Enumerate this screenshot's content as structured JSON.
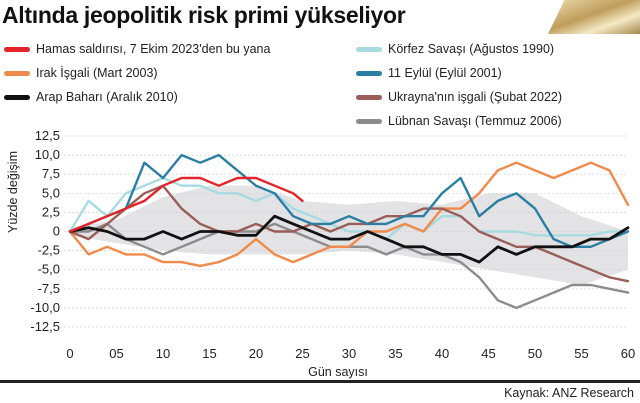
{
  "title": "Altında jeopolitik risk primi yükseliyor",
  "source": "Kaynak: ANZ Research",
  "legend": [
    {
      "label": "Hamas saldırısı, 7 Ekim 2023'den bu yana",
      "color": "#e3242b"
    },
    {
      "label": "Irak İşgali (Mart 2003)",
      "color": "#f08a4b"
    },
    {
      "label": "Arap Baharı (Aralık 2010)",
      "color": "#111111"
    },
    {
      "label": "Körfez Savaşı (Ağustos 1990)",
      "color": "#a6dbe2"
    },
    {
      "label": "11 Eylül (Eylül 2001)",
      "color": "#2b7ea3"
    },
    {
      "label": "Ukrayna'nın işgali (Şubat 2022)",
      "color": "#9a5d57"
    },
    {
      "label": "Lübnan Savaşı (Temmuz 2006)",
      "color": "#8c8c8c"
    }
  ],
  "chart_data": {
    "type": "line",
    "ylabel": "Yüzde değişim",
    "xlabel": "Gün sayısı",
    "xlim": [
      0,
      60
    ],
    "ylim": [
      -12.5,
      12.5
    ],
    "x_ticks": [
      "0",
      "05",
      "10",
      "15",
      "20",
      "25",
      "30",
      "35",
      "40",
      "45",
      "50",
      "55",
      "60"
    ],
    "y_ticks": [
      "12,5",
      "10,0",
      "7,5",
      "5,0",
      "2,5",
      "0",
      "-2,5",
      "-5,0",
      "-7,5",
      "-10,0",
      "-12,5"
    ],
    "band": {
      "x": [
        0,
        5,
        10,
        15,
        20,
        25,
        30,
        35,
        40,
        45,
        50,
        55,
        60
      ],
      "upper": [
        0.5,
        1.5,
        4.5,
        6.0,
        6.0,
        4.0,
        3.5,
        4.0,
        3.5,
        5.0,
        5.0,
        2.0,
        0
      ],
      "lower": [
        -0.5,
        -1.5,
        -2.5,
        -3.0,
        -3.0,
        -3.0,
        -2.5,
        -3.0,
        -4.0,
        -5.0,
        -6.0,
        -7.0,
        -5.0
      ]
    },
    "series": [
      {
        "name": "Körfez Savaşı (Ağustos 1990)",
        "color": "#a6dbe2",
        "x": [
          0,
          2,
          4,
          6,
          8,
          10,
          12,
          14,
          16,
          18,
          20,
          22,
          24,
          26,
          28,
          30,
          32,
          34,
          36,
          38,
          40,
          42,
          44,
          46,
          48,
          50,
          52,
          54,
          56,
          58,
          60
        ],
        "y": [
          0,
          4,
          2,
          5,
          6,
          7,
          6,
          6,
          5,
          5,
          4,
          5,
          3,
          2,
          1,
          0,
          0,
          -1,
          1,
          0,
          2,
          2,
          0,
          0,
          0,
          -0.5,
          -0.5,
          -0.5,
          -0.5,
          0,
          0
        ]
      },
      {
        "name": "Lübnan Savaşı (Temmuz 2006)",
        "color": "#8c8c8c",
        "x": [
          0,
          2,
          4,
          6,
          8,
          10,
          12,
          14,
          16,
          18,
          20,
          22,
          24,
          26,
          28,
          30,
          32,
          34,
          36,
          38,
          40,
          42,
          44,
          46,
          48,
          50,
          52,
          54,
          56,
          58,
          60
        ],
        "y": [
          0,
          0,
          1,
          -1,
          -2,
          -3,
          -2,
          -1,
          0,
          0,
          0,
          1,
          0,
          -1,
          -2,
          -2,
          -2,
          -3,
          -2,
          -3,
          -3,
          -4,
          -6,
          -9,
          -10,
          -9,
          -8,
          -7,
          -7,
          -7.5,
          -8
        ]
      },
      {
        "name": "Irak İşgali (Mart 2003)",
        "color": "#f08a4b",
        "x": [
          0,
          2,
          4,
          6,
          8,
          10,
          12,
          14,
          16,
          18,
          20,
          22,
          24,
          26,
          28,
          30,
          32,
          34,
          36,
          38,
          40,
          42,
          44,
          46,
          48,
          50,
          52,
          54,
          56,
          58,
          60
        ],
        "y": [
          0,
          -3,
          -2,
          -3,
          -3,
          -4,
          -4,
          -4.5,
          -4,
          -3,
          -1,
          -3,
          -4,
          -3,
          -2,
          -2,
          0,
          0,
          1,
          0,
          3,
          3,
          5,
          8,
          9,
          8,
          7,
          8,
          9,
          8,
          3.5
        ]
      },
      {
        "name": "Ukrayna'nın işgali (Şubat 2022)",
        "color": "#9a5d57",
        "x": [
          0,
          2,
          4,
          6,
          8,
          10,
          12,
          14,
          16,
          18,
          20,
          22,
          24,
          26,
          28,
          30,
          32,
          34,
          36,
          38,
          40,
          42,
          44,
          46,
          48,
          50,
          52,
          54,
          56,
          58,
          60
        ],
        "y": [
          0,
          -1,
          1,
          3,
          5,
          6,
          3,
          1,
          0,
          0,
          1,
          0,
          0,
          1,
          0,
          1,
          1,
          2,
          2,
          3,
          3,
          2,
          0,
          -1,
          -2,
          -2,
          -3,
          -4,
          -5,
          -6,
          -6.5
        ]
      },
      {
        "name": "11 Eylül (Eylül 2001)",
        "color": "#2b7ea3",
        "x": [
          0,
          2,
          4,
          6,
          8,
          10,
          12,
          14,
          16,
          18,
          20,
          22,
          24,
          26,
          28,
          30,
          32,
          34,
          36,
          38,
          40,
          42,
          44,
          46,
          48,
          50,
          52,
          54,
          56,
          58,
          60
        ],
        "y": [
          0,
          1,
          2,
          3,
          9,
          7,
          10,
          9,
          10,
          8,
          6,
          5,
          2,
          1,
          1,
          2,
          1,
          1,
          2,
          2,
          5,
          7,
          2,
          4,
          5,
          3,
          -1,
          -2,
          -2,
          -1,
          0
        ]
      },
      {
        "name": "Arap Baharı (Aralık 2010)",
        "color": "#111111",
        "x": [
          0,
          2,
          4,
          6,
          8,
          10,
          12,
          14,
          16,
          18,
          20,
          22,
          24,
          26,
          28,
          30,
          32,
          34,
          36,
          38,
          40,
          42,
          44,
          46,
          48,
          50,
          52,
          54,
          56,
          58,
          60
        ],
        "y": [
          0,
          0.5,
          0,
          -1,
          -1,
          0,
          -1,
          0,
          0,
          -0.5,
          -0.5,
          2,
          1,
          0,
          -1,
          -1,
          0,
          -1,
          -2,
          -2,
          -3,
          -3,
          -4,
          -2,
          -3,
          -2,
          -2,
          -2,
          -1,
          -1,
          0.5
        ]
      },
      {
        "name": "Hamas saldırısı, 7 Ekim 2023'den bu yana",
        "color": "#e3242b",
        "x": [
          0,
          2,
          4,
          6,
          8,
          10,
          12,
          14,
          16,
          18,
          20,
          22,
          24,
          25
        ],
        "y": [
          0,
          1,
          2,
          3,
          4,
          6,
          7,
          7,
          6,
          7,
          7,
          6,
          5,
          4
        ]
      }
    ]
  }
}
